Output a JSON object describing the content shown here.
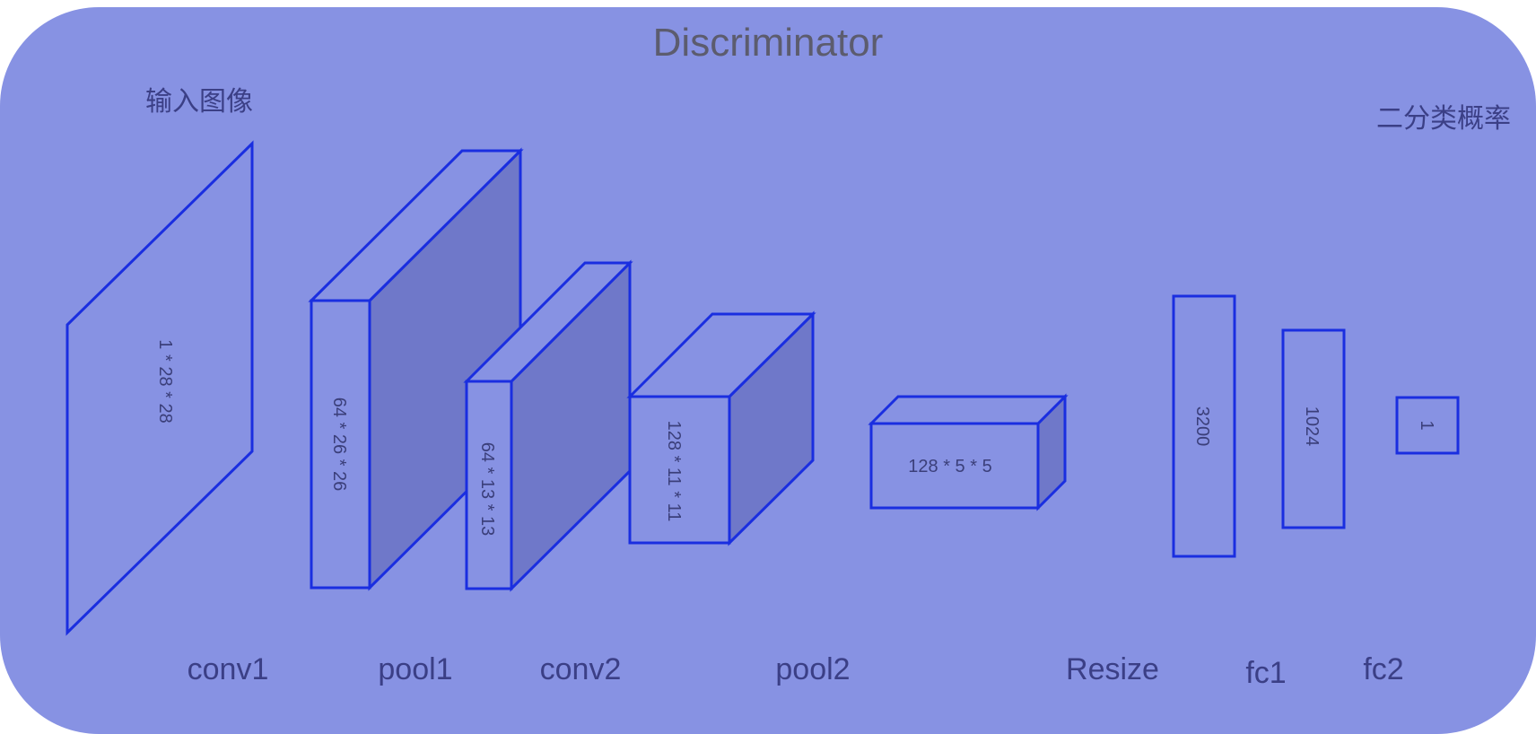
{
  "title": "Discriminator",
  "input_label": "输入图像",
  "output_label": "二分类概率",
  "colors": {
    "panel": "#8792e3",
    "stroke": "#1a2ee0",
    "side_face": "#6f78c9",
    "title_text": "#5c5c6e",
    "label_text": "#3b3f86"
  },
  "blocks": {
    "input": "1 * 28 * 28",
    "conv1": "64 * 26 * 26",
    "pool1": "64 * 13 * 13",
    "conv2": "128 * 11 * 11",
    "pool2": "128 * 5 * 5",
    "flat": "3200",
    "fc1": "1024",
    "fc2": "1"
  },
  "layer_labels": {
    "conv1": "conv1",
    "pool1": "pool1",
    "conv2": "conv2",
    "pool2": "pool2",
    "resize": "Resize",
    "fc1": "fc1",
    "fc2": "fc2"
  }
}
